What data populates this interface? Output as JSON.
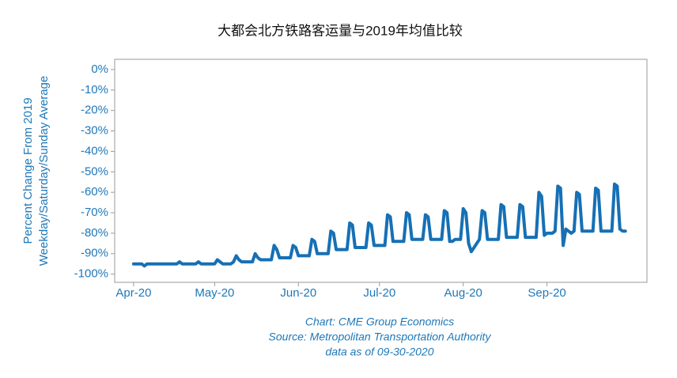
{
  "chart_data": {
    "type": "line",
    "title": "大都会北方铁路客运量与2019年均值比较",
    "ylabel": [
      "Percent Change From 2019",
      "Weekday/Saturday/Sunday Average"
    ],
    "annotations": [
      "Chart: CME Group Economics",
      "Source: Metropolitan Transportation Authority",
      "data as of 09-30-2020"
    ],
    "color": "#1670b5",
    "x": [
      0,
      1,
      2,
      3,
      4,
      5,
      6,
      7,
      8,
      9,
      10,
      11,
      12,
      13,
      14,
      15,
      16,
      17,
      18,
      19,
      20,
      21,
      22,
      23,
      24,
      25,
      26,
      27,
      28,
      29,
      30,
      31,
      32,
      33,
      34,
      35,
      36,
      37,
      38,
      39,
      40,
      41,
      42,
      43,
      44,
      45,
      46,
      47,
      48,
      49,
      50,
      51,
      52,
      53,
      54,
      55,
      56,
      57,
      58,
      59,
      60,
      61,
      62,
      63,
      64,
      65,
      66,
      67,
      68,
      69,
      70,
      71,
      72,
      73,
      74,
      75,
      76,
      77,
      78,
      79,
      80,
      81,
      82,
      83,
      84,
      85,
      86,
      87,
      88,
      89,
      90,
      91,
      92,
      93,
      94,
      95,
      96,
      97,
      98,
      99,
      100,
      101,
      102,
      103,
      104,
      105,
      106,
      107,
      108,
      109,
      110,
      111,
      112,
      113,
      114,
      115,
      116,
      117,
      118,
      119,
      120,
      121,
      122,
      123,
      124,
      125,
      126,
      127,
      128,
      129,
      130,
      131,
      132,
      133,
      134,
      135,
      136,
      137,
      138,
      139,
      140,
      141,
      142,
      143,
      144,
      145,
      146,
      147,
      148,
      149,
      150,
      151,
      152,
      153,
      154,
      155,
      156,
      157,
      158,
      159,
      160,
      161,
      162,
      163,
      164,
      165,
      166,
      167,
      168,
      169,
      170,
      171,
      172,
      173,
      174,
      175,
      176,
      177,
      178,
      179,
      180,
      181,
      182
    ],
    "values": [
      -95,
      -95,
      -95,
      -95,
      -96,
      -95,
      -95,
      -95,
      -95,
      -95,
      -95,
      -95,
      -95,
      -95,
      -95,
      -95,
      -95,
      -94,
      -95,
      -95,
      -95,
      -95,
      -95,
      -95,
      -94,
      -95,
      -95,
      -95,
      -95,
      -95,
      -95,
      -93,
      -94,
      -95,
      -95,
      -95,
      -95,
      -94,
      -91,
      -93,
      -94,
      -94,
      -94,
      -94,
      -94,
      -90,
      -92,
      -93,
      -93,
      -93,
      -93,
      -93,
      -86,
      -88,
      -92,
      -92,
      -92,
      -92,
      -92,
      -86,
      -87,
      -91,
      -91,
      -91,
      -91,
      -91,
      -83,
      -84,
      -90,
      -90,
      -90,
      -90,
      -90,
      -79,
      -80,
      -88,
      -88,
      -88,
      -88,
      -88,
      -75,
      -76,
      -87,
      -87,
      -87,
      -87,
      -87,
      -75,
      -76,
      -86,
      -86,
      -86,
      -86,
      -86,
      -71,
      -72,
      -84,
      -84,
      -84,
      -84,
      -84,
      -70,
      -71,
      -83,
      -83,
      -83,
      -83,
      -83,
      -71,
      -72,
      -83,
      -83,
      -83,
      -83,
      -83,
      -69,
      -70,
      -84,
      -84,
      -83,
      -83,
      -83,
      -68,
      -70,
      -85,
      -89,
      -87,
      -85,
      -83,
      -69,
      -70,
      -83,
      -83,
      -83,
      -83,
      -83,
      -66,
      -67,
      -82,
      -82,
      -82,
      -82,
      -82,
      -66,
      -67,
      -82,
      -82,
      -82,
      -82,
      -82,
      -60,
      -62,
      -81,
      -80,
      -80,
      -80,
      -79,
      -57,
      -58,
      -86,
      -78,
      -79,
      -80,
      -79,
      -60,
      -61,
      -79,
      -79,
      -79,
      -79,
      -79,
      -58,
      -59,
      -79,
      -79,
      -79,
      -79,
      -79,
      -56,
      -57,
      -78,
      -79,
      -79
    ],
    "xlim": [
      -7,
      190
    ],
    "xticks": [
      {
        "value": 0,
        "label": "Apr-20"
      },
      {
        "value": 30,
        "label": "May-20"
      },
      {
        "value": 61,
        "label": "Jun-20"
      },
      {
        "value": 91,
        "label": "Jul-20"
      },
      {
        "value": 122,
        "label": "Aug-20"
      },
      {
        "value": 153,
        "label": "Sep-20"
      }
    ],
    "ylim": [
      -104,
      5
    ],
    "yticks": [
      {
        "value": 0,
        "label": "0%"
      },
      {
        "value": -10,
        "label": "-10%"
      },
      {
        "value": -20,
        "label": "-20%"
      },
      {
        "value": -30,
        "label": "-30%"
      },
      {
        "value": -40,
        "label": "-40%"
      },
      {
        "value": -50,
        "label": "-50%"
      },
      {
        "value": -60,
        "label": "-60%"
      },
      {
        "value": -70,
        "label": "-70%"
      },
      {
        "value": -80,
        "label": "-80%"
      },
      {
        "value": -90,
        "label": "-90%"
      },
      {
        "value": -100,
        "label": "-100%"
      }
    ]
  }
}
